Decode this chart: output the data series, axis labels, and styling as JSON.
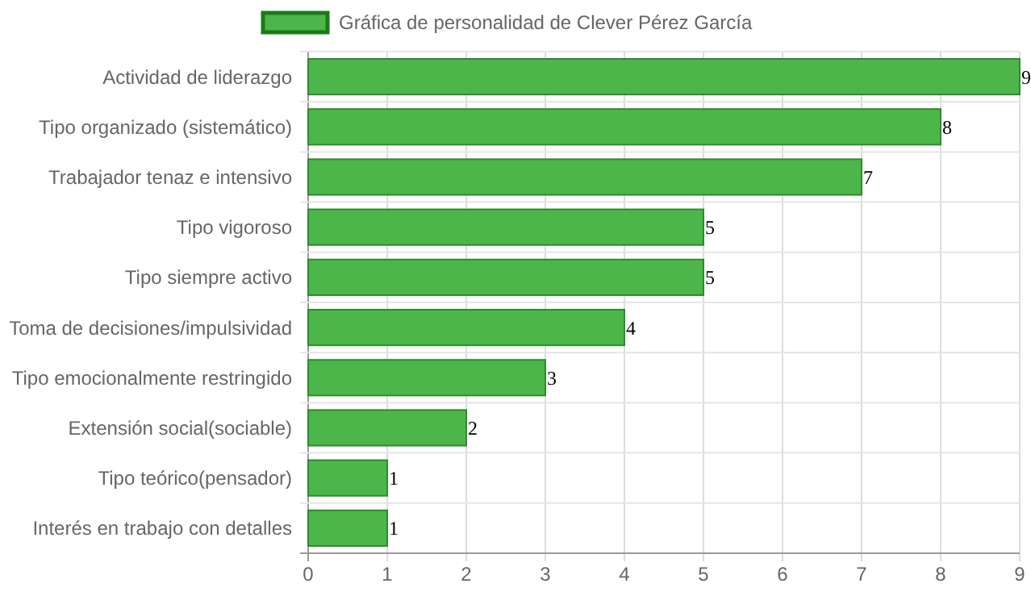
{
  "chart_data": {
    "type": "bar",
    "orientation": "horizontal",
    "categories": [
      "Actividad de liderazgo",
      "Tipo organizado (sistemático)",
      "Trabajador tenaz e intensivo",
      "Tipo vigoroso",
      "Tipo siempre activo",
      "Toma de decisiones/impulsividad",
      "Tipo emocionalmente restringido",
      "Extensión social(sociable)",
      "Tipo teórico(pensador)",
      "Interés en trabajo con detalles"
    ],
    "series": [
      {
        "name": "Gráfica de personalidad de Clever Pérez García",
        "color": "#4db64a",
        "values": [
          9,
          8,
          7,
          5,
          5,
          4,
          3,
          2,
          1,
          1
        ]
      }
    ],
    "xlim": [
      0,
      9
    ],
    "xticks": [
      0,
      1,
      2,
      3,
      4,
      5,
      6,
      7,
      8,
      9
    ],
    "grid": true,
    "legend": "top",
    "data_labels": true
  }
}
